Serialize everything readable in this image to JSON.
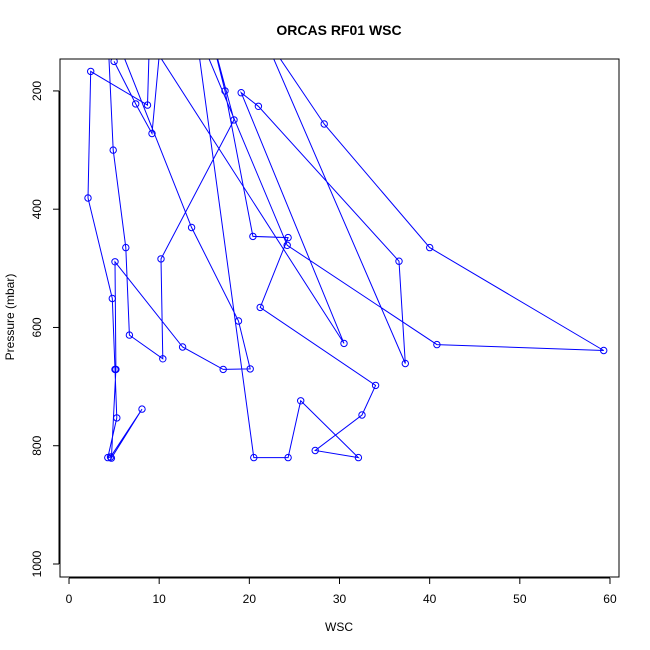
{
  "chart_data": {
    "type": "line",
    "title": "ORCAS RF01 WSC",
    "xlabel": "WSC",
    "ylabel": "Pressure (mbar)",
    "xlim": [
      -1,
      61
    ],
    "ylim": [
      1022,
      146
    ],
    "y_reversed": true,
    "x_ticks": [
      0,
      10,
      20,
      30,
      40,
      50,
      60
    ],
    "y_ticks": [
      200,
      400,
      600,
      800,
      1000
    ],
    "grid": false,
    "legend": "none",
    "marker": "open-circle",
    "series": [
      {
        "color": "#0000ff",
        "points": [
          [
            8.9,
            120
          ],
          [
            8.7,
            224
          ],
          [
            2.4,
            167
          ],
          [
            2.1,
            381
          ],
          [
            4.8,
            551
          ],
          [
            5.1,
            671
          ],
          [
            5.3,
            753
          ],
          [
            4.3,
            820
          ],
          [
            4.6,
            819
          ],
          [
            8.1,
            738
          ],
          [
            4.7,
            821
          ],
          [
            5.2,
            671
          ],
          [
            5.1,
            489
          ],
          [
            12.6,
            633
          ],
          [
            17.1,
            671
          ],
          [
            20.1,
            670
          ],
          [
            18.8,
            589
          ],
          [
            13.6,
            431
          ],
          [
            4.2,
            70
          ],
          [
            4.9,
            300
          ],
          [
            6.3,
            465
          ],
          [
            6.7,
            613
          ],
          [
            10.4,
            653
          ],
          [
            10.2,
            484
          ],
          [
            18.3,
            249
          ],
          [
            15.5,
            90
          ],
          [
            17.3,
            200
          ],
          [
            20.4,
            446
          ],
          [
            24.3,
            448
          ],
          [
            21.2,
            566
          ],
          [
            34.0,
            698
          ],
          [
            32.5,
            748
          ],
          [
            27.3,
            808
          ],
          [
            32.1,
            820
          ],
          [
            25.7,
            724
          ],
          [
            24.3,
            820
          ],
          [
            20.5,
            820
          ],
          [
            14.0,
            90
          ],
          [
            24.2,
            461
          ],
          [
            40.8,
            629
          ],
          [
            59.3,
            639
          ],
          [
            40.0,
            465
          ],
          [
            28.3,
            256
          ],
          [
            21.4,
            100
          ],
          [
            37.3,
            661
          ],
          [
            36.6,
            488
          ],
          [
            21.0,
            226
          ],
          [
            19.1,
            203
          ],
          [
            30.5,
            627
          ],
          [
            10.0,
            140
          ],
          [
            9.2,
            272
          ],
          [
            7.4,
            222
          ],
          [
            5.0,
            150
          ]
        ]
      }
    ]
  }
}
